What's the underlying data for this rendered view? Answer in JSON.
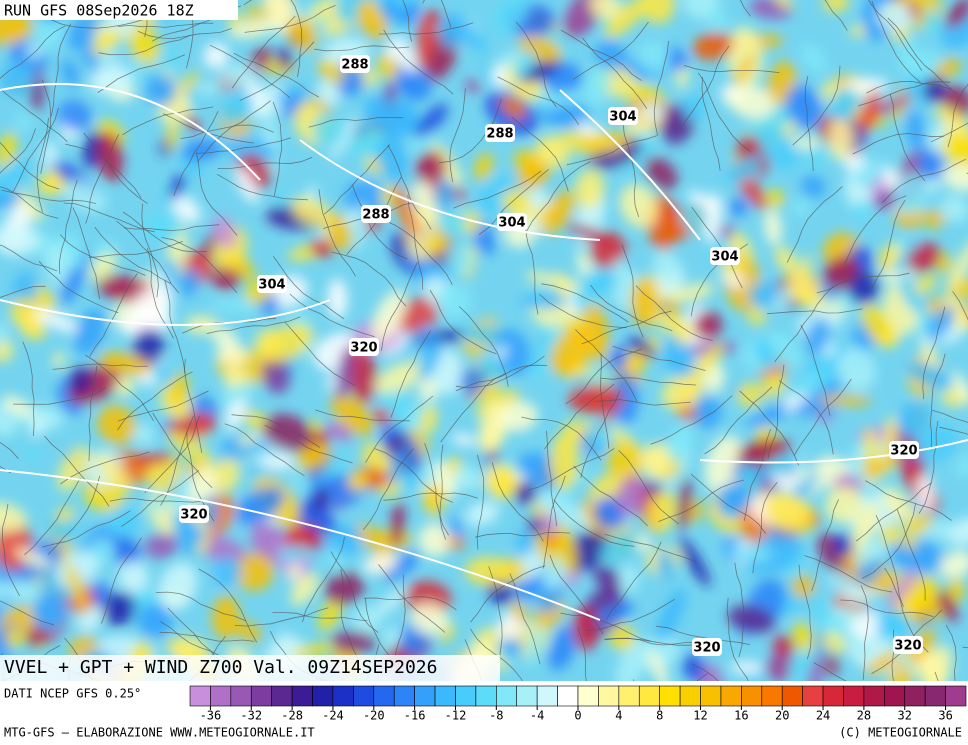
{
  "header": {
    "run": "RUN GFS 08Sep2026 18Z"
  },
  "map": {
    "caption": "VVEL + GPT + WIND Z700 Val. 09Z14SEP2026",
    "contour_labels": [
      "288",
      "288",
      "288",
      "304",
      "304",
      "304",
      "304",
      "320",
      "320",
      "320",
      "320",
      "320"
    ]
  },
  "legend": {
    "source": "DATI NCEP GFS 0.25°",
    "lim": [
      -38,
      38
    ],
    "ticks": [
      -36,
      -32,
      -28,
      -24,
      -20,
      -16,
      -12,
      -8,
      -4,
      0,
      4,
      8,
      12,
      16,
      20,
      24,
      28,
      32,
      36
    ],
    "colors": [
      "#c890dc",
      "#b070c8",
      "#9858b4",
      "#7c3ca0",
      "#5a2890",
      "#3c1c96",
      "#2020a8",
      "#1c30c8",
      "#1e4ce0",
      "#2468f0",
      "#2c84f8",
      "#34a0fc",
      "#3cb8fc",
      "#48ccfc",
      "#5cdcf8",
      "#80e8f8",
      "#a8f0f8",
      "#d0f8fc",
      "#ffffff",
      "#ffffd0",
      "#fff8a0",
      "#fff070",
      "#ffe840",
      "#ffe000",
      "#f8d000",
      "#f8c000",
      "#f8a800",
      "#f89000",
      "#f87800",
      "#f05800",
      "#e84040",
      "#d82838",
      "#c81c40",
      "#b01848",
      "#a01450",
      "#902060",
      "#882870",
      "#a03c90"
    ]
  },
  "footer": {
    "left": "MTG-GFS — ELABORAZIONE WWW.METEOGIORNALE.IT",
    "right": "(C) METEOGIORNALE"
  }
}
